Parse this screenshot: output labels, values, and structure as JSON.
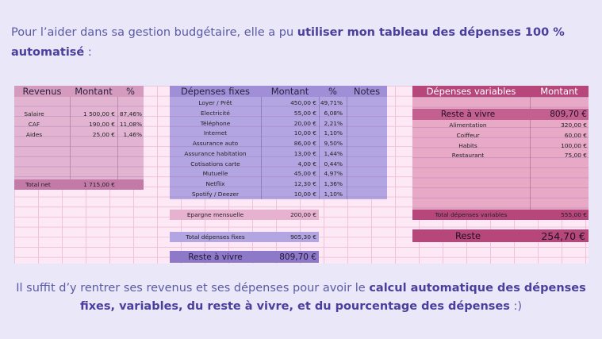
{
  "intro": {
    "before": "Pour l’aider dans sa gestion budgétaire, elle a pu ",
    "bold": "utiliser mon tableau des dépenses 100 % automatisé",
    "after": " :"
  },
  "revenus": {
    "headers": [
      "Revenus",
      "Montant",
      "%"
    ],
    "rows": [
      {
        "label": "Salaire",
        "amount": "1 500,00 €",
        "pct": "87,46%"
      },
      {
        "label": "CAF",
        "amount": "190,00 €",
        "pct": "11,08%"
      },
      {
        "label": "Aides",
        "amount": "25,00 €",
        "pct": "1,46%"
      }
    ],
    "total_label": "Total net",
    "total_amount": "1 715,00 €"
  },
  "fixes": {
    "headers": [
      "Dépenses fixes",
      "Montant",
      "%",
      "Notes"
    ],
    "rows": [
      {
        "label": "Loyer / Prêt",
        "amount": "450,00 €",
        "pct": "49,71%"
      },
      {
        "label": "Electricité",
        "amount": "55,00 €",
        "pct": "6,08%"
      },
      {
        "label": "Téléphone",
        "amount": "20,00 €",
        "pct": "2,21%"
      },
      {
        "label": "Internet",
        "amount": "10,00 €",
        "pct": "1,10%"
      },
      {
        "label": "Assurance auto",
        "amount": "86,00 €",
        "pct": "9,50%"
      },
      {
        "label": "Assurance habitation",
        "amount": "13,00 €",
        "pct": "1,44%"
      },
      {
        "label": "Cotisations carte",
        "amount": "4,00 €",
        "pct": "0,44%"
      },
      {
        "label": "Mutuelle",
        "amount": "45,00 €",
        "pct": "4,97%"
      },
      {
        "label": "Netflix",
        "amount": "12,30 €",
        "pct": "1,36%"
      },
      {
        "label": "Spotify / Deezer",
        "amount": "10,00 €",
        "pct": "1,10%"
      }
    ],
    "epargne_label": "Epargne mensuelle",
    "epargne_amount": "200,00 €",
    "total_label": "Total dépenses fixes",
    "total_amount": "905,30 €",
    "reste_label": "Reste à vivre",
    "reste_amount": "809,70 €"
  },
  "variables": {
    "headers": [
      "Dépenses variables",
      "Montant"
    ],
    "reste_label": "Reste à vivre",
    "reste_amount": "809,70 €",
    "rows": [
      {
        "label": "Alimentation",
        "amount": "320,00 €"
      },
      {
        "label": "Coiffeur",
        "amount": "60,00 €"
      },
      {
        "label": "Habits",
        "amount": "100,00 €"
      },
      {
        "label": "Restaurant",
        "amount": "75,00 €"
      }
    ],
    "total_label": "Total dépenses variables",
    "total_amount": "555,00 €",
    "final_label": "Reste",
    "final_amount": "254,70 €"
  },
  "outro": {
    "before": "Il suffit d’y rentrer ses revenus et ses dépenses pour avoir le ",
    "bold": "calcul automatique des dépenses fixes, variables, du reste à vivre, et du pourcentage des dépenses",
    "after": " :)"
  },
  "colors": {
    "revenus_header": "#d9a2c5",
    "fixes_header": "#a895d8",
    "variables_header": "#b7477b",
    "highlight_purple": "#8e78c8"
  }
}
